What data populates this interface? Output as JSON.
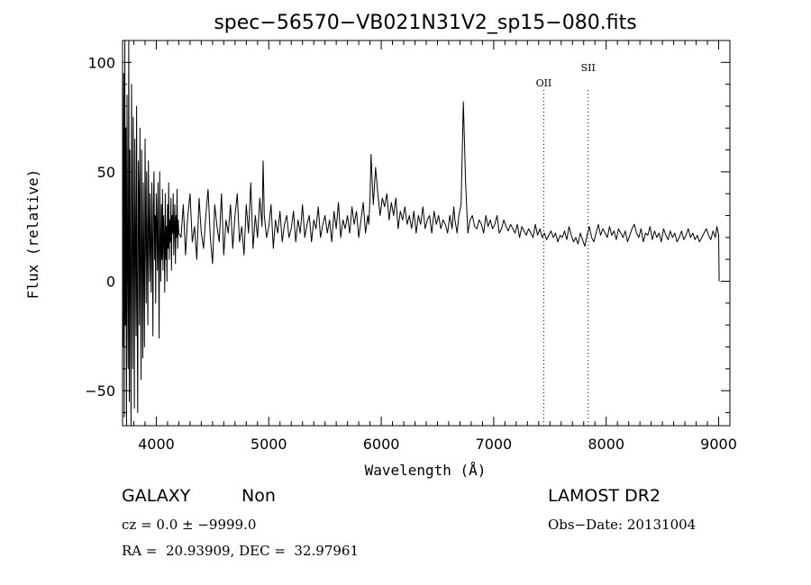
{
  "chart_data": {
    "type": "line",
    "title": "spec−56570−VB021N31V2_sp15−080.fits",
    "xlabel": "Wavelength (Å)",
    "ylabel": "Flux (relative)",
    "xlim": [
      3700,
      9100
    ],
    "ylim": [
      -66,
      110
    ],
    "xticks": [
      4000,
      5000,
      6000,
      7000,
      8000,
      9000
    ],
    "yticks": [
      -50,
      0,
      50,
      100
    ],
    "ytick_labels": [
      "−50",
      "0",
      "50",
      "100"
    ],
    "grid": false,
    "line_color": "#000000",
    "markers": [
      {
        "label": "OII",
        "x": 7445
      },
      {
        "label": "SII",
        "x": 7840
      }
    ],
    "series": [
      {
        "x": [
          3700,
          3705,
          3710,
          3715,
          3720,
          3725,
          3730,
          3735,
          3740,
          3745,
          3750,
          3755,
          3760,
          3765,
          3770,
          3775,
          3780,
          3785,
          3790,
          3795,
          3800,
          3805,
          3810,
          3815,
          3820,
          3825,
          3830,
          3835,
          3840,
          3845,
          3850,
          3855,
          3860,
          3865,
          3870,
          3875,
          3880,
          3885,
          3890,
          3895,
          3900,
          3905,
          3910,
          3915,
          3920,
          3925,
          3930,
          3935,
          3940,
          3945,
          3950,
          3955,
          3960,
          3965,
          3970,
          3975,
          3980,
          3985,
          3990,
          3995,
          4000,
          4005,
          4010,
          4015,
          4020,
          4025,
          4030,
          4035,
          4040,
          4045,
          4050,
          4055,
          4060,
          4065,
          4070,
          4075,
          4080,
          4085,
          4090,
          4095,
          4100,
          4105,
          4110,
          4115,
          4120,
          4125,
          4130,
          4135,
          4140,
          4145,
          4150,
          4155,
          4160,
          4165,
          4170,
          4175,
          4180,
          4185,
          4190,
          4195,
          4200,
          4220,
          4240,
          4260,
          4280,
          4300,
          4320,
          4340,
          4360,
          4380,
          4400,
          4420,
          4440,
          4460,
          4480,
          4500,
          4520,
          4540,
          4560,
          4580,
          4600,
          4620,
          4640,
          4660,
          4680,
          4700,
          4720,
          4740,
          4760,
          4780,
          4800,
          4820,
          4840,
          4860,
          4880,
          4900,
          4920,
          4940,
          4950,
          4960,
          4980,
          5000,
          5020,
          5040,
          5060,
          5080,
          5100,
          5120,
          5140,
          5160,
          5180,
          5200,
          5220,
          5240,
          5260,
          5280,
          5300,
          5320,
          5340,
          5360,
          5380,
          5400,
          5420,
          5440,
          5460,
          5480,
          5500,
          5520,
          5540,
          5560,
          5580,
          5600,
          5620,
          5640,
          5660,
          5680,
          5700,
          5720,
          5740,
          5760,
          5780,
          5800,
          5820,
          5840,
          5860,
          5880,
          5890,
          5900,
          5910,
          5920,
          5930,
          5950,
          5970,
          5990,
          6010,
          6030,
          6050,
          6070,
          6090,
          6110,
          6130,
          6150,
          6170,
          6190,
          6210,
          6230,
          6250,
          6270,
          6290,
          6310,
          6330,
          6350,
          6370,
          6390,
          6410,
          6430,
          6450,
          6470,
          6490,
          6510,
          6530,
          6550,
          6570,
          6590,
          6610,
          6630,
          6645,
          6655,
          6665,
          6675,
          6690,
          6710,
          6730,
          6750,
          6770,
          6790,
          6810,
          6830,
          6850,
          6870,
          6890,
          6910,
          6930,
          6950,
          6970,
          6990,
          7010,
          7030,
          7050,
          7070,
          7090,
          7110,
          7130,
          7150,
          7170,
          7190,
          7210,
          7230,
          7250,
          7270,
          7290,
          7310,
          7330,
          7350,
          7370,
          7390,
          7410,
          7430,
          7450,
          7470,
          7490,
          7510,
          7530,
          7550,
          7570,
          7590,
          7610,
          7630,
          7650,
          7670,
          7690,
          7710,
          7730,
          7750,
          7770,
          7790,
          7810,
          7830,
          7850,
          7870,
          7890,
          7910,
          7930,
          7950,
          7970,
          7990,
          8010,
          8030,
          8050,
          8070,
          8090,
          8110,
          8130,
          8150,
          8170,
          8190,
          8210,
          8230,
          8250,
          8270,
          8290,
          8310,
          8330,
          8350,
          8370,
          8390,
          8410,
          8430,
          8450,
          8470,
          8490,
          8510,
          8530,
          8550,
          8570,
          8590,
          8610,
          8630,
          8650,
          8670,
          8690,
          8710,
          8730,
          8750,
          8770,
          8790,
          8810,
          8830,
          8850,
          8870,
          8890,
          8910,
          8930,
          8950,
          8970,
          8985,
          9000,
          9005
        ],
        "y": [
          20,
          -30,
          95,
          -62,
          110,
          -20,
          70,
          -66,
          85,
          10,
          -40,
          110,
          -55,
          60,
          5,
          -66,
          90,
          30,
          -40,
          75,
          10,
          -58,
          65,
          15,
          -25,
          80,
          -10,
          -60,
          55,
          40,
          -20,
          70,
          0,
          -45,
          60,
          20,
          -35,
          45,
          5,
          -30,
          65,
          25,
          -10,
          50,
          10,
          -20,
          55,
          30,
          0,
          40,
          15,
          -5,
          45,
          20,
          -25,
          35,
          50,
          10,
          30,
          -10,
          40,
          25,
          5,
          45,
          15,
          -26,
          50,
          20,
          0,
          35,
          10,
          42,
          5,
          30,
          20,
          -5,
          40,
          10,
          25,
          0,
          35,
          15,
          45,
          10,
          28,
          18,
          38,
          5,
          30,
          22,
          40,
          12,
          25,
          35,
          8,
          30,
          20,
          42,
          15,
          28,
          22,
          20,
          35,
          12,
          30,
          40,
          18,
          25,
          10,
          38,
          22,
          15,
          30,
          42,
          20,
          8,
          35,
          25,
          18,
          40,
          12,
          28,
          22,
          35,
          15,
          30,
          40,
          18,
          25,
          12,
          35,
          22,
          45,
          15,
          30,
          20,
          38,
          25,
          55,
          30,
          20,
          25,
          35,
          15,
          28,
          22,
          32,
          18,
          26,
          30,
          20,
          24,
          32,
          18,
          28,
          22,
          35,
          20,
          26,
          30,
          18,
          28,
          24,
          34,
          20,
          26,
          30,
          22,
          28,
          18,
          32,
          24,
          36,
          20,
          28,
          24,
          30,
          22,
          34,
          26,
          32,
          20,
          28,
          36,
          22,
          30,
          26,
          38,
          58,
          45,
          35,
          52,
          40,
          30,
          38,
          34,
          40,
          28,
          36,
          30,
          38,
          24,
          32,
          28,
          34,
          26,
          30,
          24,
          32,
          22,
          30,
          26,
          34,
          24,
          28,
          30,
          22,
          32,
          26,
          30,
          24,
          28,
          26,
          22,
          30,
          24,
          34,
          28,
          25,
          22,
          30,
          35,
          82,
          45,
          22,
          28,
          30,
          25,
          24,
          28,
          26,
          22,
          30,
          25,
          28,
          24,
          26,
          30,
          22,
          24,
          28,
          25,
          23,
          26,
          24,
          22,
          26,
          20,
          25,
          23,
          21,
          24,
          22,
          20,
          26,
          21,
          24,
          20,
          22,
          19,
          21,
          23,
          20,
          22,
          18,
          21,
          20,
          23,
          19,
          25,
          21,
          18,
          20,
          17,
          22,
          19,
          16,
          21,
          25,
          20,
          18,
          22,
          26,
          21,
          24,
          22,
          20,
          25,
          21,
          23,
          19,
          24,
          22,
          20,
          23,
          18,
          21,
          24,
          26,
          22,
          20,
          24,
          18,
          22,
          21,
          25,
          19,
          23,
          20,
          22,
          18,
          24,
          21,
          19,
          23,
          20,
          22,
          18,
          20,
          23,
          19,
          21,
          24,
          20,
          22,
          19,
          21,
          18,
          20,
          22,
          24,
          21,
          19,
          23,
          20,
          25,
          21,
          0
        ]
      }
    ]
  },
  "info": {
    "object_type": "GALAXY",
    "subclass": "Non",
    "survey": "LAMOST DR2",
    "redshift_text": "cz = 0.0 ± −9999.0",
    "obs_date_text": "Obs−Date: 20131004",
    "coords_text": "RA =  20.93909, DEC =  32.97961"
  }
}
